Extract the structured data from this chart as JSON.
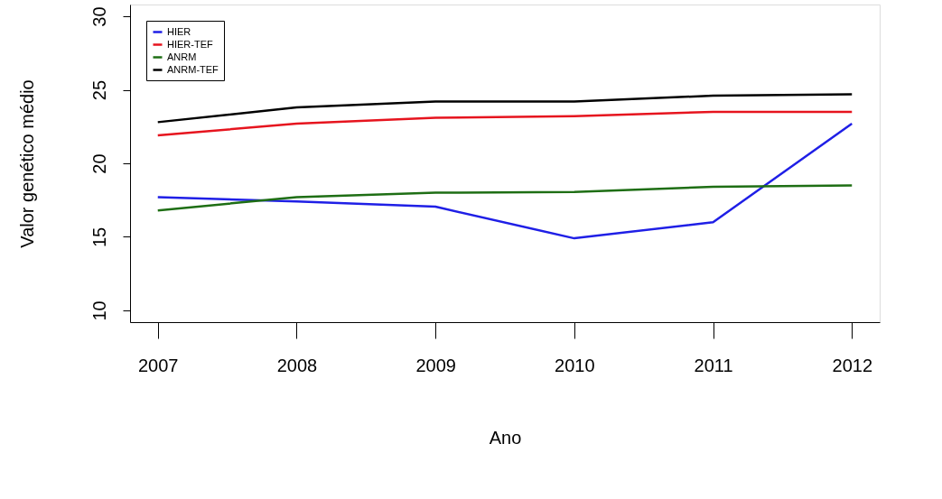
{
  "chart_data": {
    "type": "line",
    "xlabel": "Ano",
    "ylabel": "Valor genético médio",
    "x": [
      2007,
      2008,
      2009,
      2010,
      2011,
      2012
    ],
    "xlim": [
      2006.8,
      2012.2
    ],
    "xticks": [
      2007,
      2008,
      2009,
      2010,
      2011,
      2012
    ],
    "ylim": [
      9.2,
      30.8
    ],
    "yticks": [
      10,
      15,
      20,
      25,
      30
    ],
    "grid": false,
    "legend": "top left",
    "marker": "none",
    "line_style": "solid",
    "series": [
      {
        "name": "HIER",
        "color": "#1f1fe6",
        "values": [
          17.7,
          17.4,
          17.05,
          14.9,
          16.0,
          22.7
        ]
      },
      {
        "name": "HIER-TEF",
        "color": "#e6141e",
        "values": [
          21.9,
          22.7,
          23.1,
          23.2,
          23.5,
          23.5
        ]
      },
      {
        "name": "ANRM",
        "color": "#1e6e14",
        "values": [
          16.8,
          17.7,
          18.0,
          18.05,
          18.4,
          18.5
        ]
      },
      {
        "name": "ANRM-TEF",
        "color": "#000000",
        "values": [
          22.8,
          23.8,
          24.2,
          24.2,
          24.6,
          24.7
        ]
      }
    ]
  }
}
